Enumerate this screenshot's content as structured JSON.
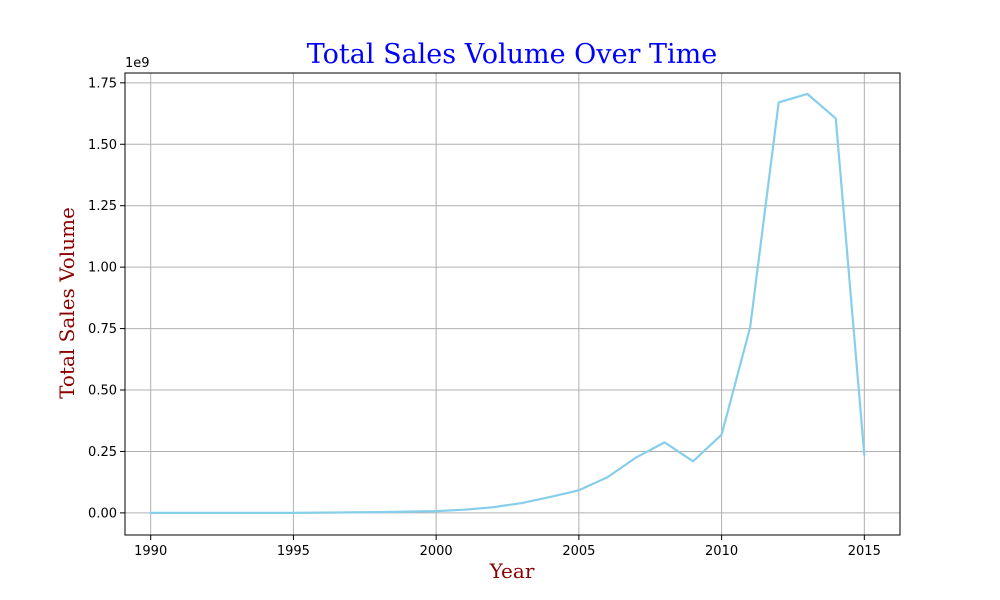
{
  "chart_data": {
    "type": "line",
    "title": "Total Sales Volume Over Time",
    "xlabel": "Year",
    "ylabel": "Total Sales Volume",
    "y_offset_label": "1e9",
    "x_ticks": [
      "1990",
      "1995",
      "2000",
      "2005",
      "2010",
      "2015"
    ],
    "y_ticks": [
      "0.00",
      "0.25",
      "0.50",
      "0.75",
      "1.00",
      "1.25",
      "1.50",
      "1.75"
    ],
    "xlim": [
      1989.1,
      2016.25
    ],
    "ylim": [
      -90000000.0,
      1790000000.0
    ],
    "grid": true,
    "line_color": "#87ceeb",
    "series": [
      {
        "x": [
          1990,
          1991,
          1992,
          1993,
          1994,
          1995,
          1996,
          1997,
          1998,
          1999,
          2000,
          2001,
          2002,
          2003,
          2004,
          2005,
          2006,
          2007,
          2008,
          2009,
          2010,
          2011,
          2012,
          2013,
          2014,
          2015
        ],
        "values": [
          0.0,
          0.0,
          0.0,
          0.0,
          0.0,
          0.0,
          1000000,
          2000000,
          3000000,
          5000000,
          7000000,
          13000000,
          23000000,
          40000000,
          65000000,
          92000000,
          145000000,
          225000000,
          287000000,
          210000000,
          318000000,
          755000000,
          1670000000,
          1705000000,
          1605000000,
          235000000
        ]
      }
    ]
  }
}
